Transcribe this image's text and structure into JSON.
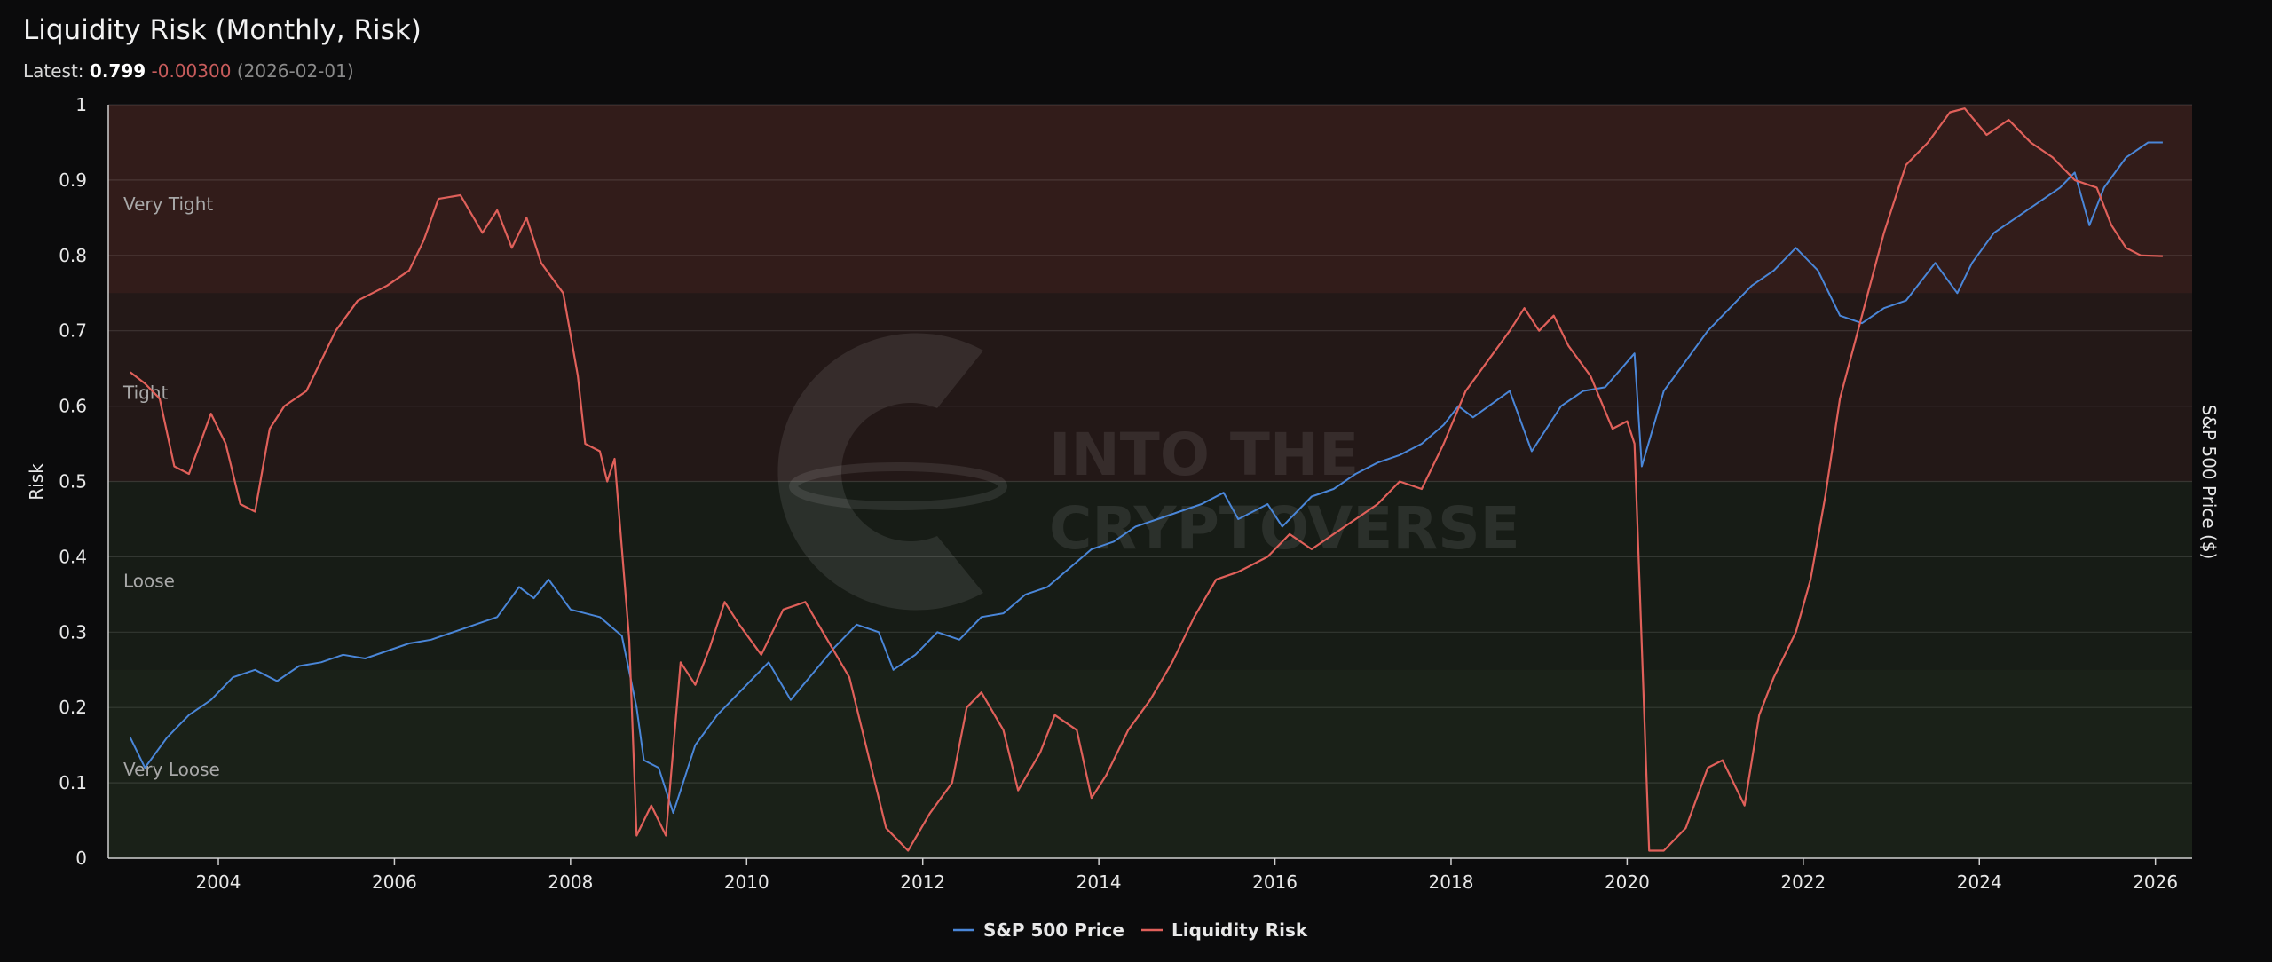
{
  "header": {
    "title": "Liquidity Risk (Monthly, Risk)",
    "latest_label": "Latest:",
    "latest_value": "0.799",
    "latest_change": "-0.00300",
    "latest_date": "(2026-02-01)"
  },
  "watermark": {
    "line1": "INTO THE",
    "line2": "CRYPTOVERSE"
  },
  "colors": {
    "background": "#0b0b0c",
    "sp500": "#4a86d8",
    "liquidity": "#e0605a",
    "zone_tight": "#d44a40",
    "zone_loose": "#3e6a30"
  },
  "chart_data": {
    "type": "line",
    "title": "Liquidity Risk (Monthly, Risk)",
    "xlim": [
      "2002-10-01",
      "2026-06-01"
    ],
    "x_ticks": [
      "2004",
      "2006",
      "2008",
      "2010",
      "2012",
      "2014",
      "2016",
      "2018",
      "2020",
      "2022",
      "2024",
      "2026"
    ],
    "y_left": {
      "label": "Risk",
      "lim": [
        0,
        1
      ],
      "ticks": [
        "0",
        "0.1",
        "0.2",
        "0.3",
        "0.4",
        "0.5",
        "0.6",
        "0.7",
        "0.8",
        "0.9",
        "1"
      ]
    },
    "y_right": {
      "label": "S&P 500 Price ($)"
    },
    "zones": [
      {
        "label": "Very Tight",
        "from": 0.75,
        "to": 1.0
      },
      {
        "label": "Tight",
        "from": 0.5,
        "to": 0.75
      },
      {
        "label": "Loose",
        "from": 0.25,
        "to": 0.5
      },
      {
        "label": "Very Loose",
        "from": 0.0,
        "to": 0.25
      }
    ],
    "grid": true,
    "legend_position": "bottom-center",
    "series": [
      {
        "name": "S&P 500 Price",
        "axis": "right",
        "note": "plotted against left risk scale as shown",
        "points": [
          [
            "2003-01",
            0.16
          ],
          [
            "2003-03",
            0.12
          ],
          [
            "2003-06",
            0.16
          ],
          [
            "2003-09",
            0.19
          ],
          [
            "2003-12",
            0.21
          ],
          [
            "2004-03",
            0.24
          ],
          [
            "2004-06",
            0.25
          ],
          [
            "2004-09",
            0.235
          ],
          [
            "2004-12",
            0.255
          ],
          [
            "2005-03",
            0.26
          ],
          [
            "2005-06",
            0.27
          ],
          [
            "2005-09",
            0.265
          ],
          [
            "2005-12",
            0.275
          ],
          [
            "2006-03",
            0.285
          ],
          [
            "2006-06",
            0.29
          ],
          [
            "2006-09",
            0.3
          ],
          [
            "2006-12",
            0.31
          ],
          [
            "2007-03",
            0.32
          ],
          [
            "2007-06",
            0.36
          ],
          [
            "2007-08",
            0.345
          ],
          [
            "2007-10",
            0.37
          ],
          [
            "2008-01",
            0.33
          ],
          [
            "2008-05",
            0.32
          ],
          [
            "2008-08",
            0.295
          ],
          [
            "2008-10",
            0.2
          ],
          [
            "2008-11",
            0.13
          ],
          [
            "2009-01",
            0.12
          ],
          [
            "2009-03",
            0.06
          ],
          [
            "2009-06",
            0.15
          ],
          [
            "2009-09",
            0.19
          ],
          [
            "2009-12",
            0.22
          ],
          [
            "2010-04",
            0.26
          ],
          [
            "2010-07",
            0.21
          ],
          [
            "2010-10",
            0.245
          ],
          [
            "2011-01",
            0.28
          ],
          [
            "2011-04",
            0.31
          ],
          [
            "2011-07",
            0.3
          ],
          [
            "2011-09",
            0.25
          ],
          [
            "2011-12",
            0.27
          ],
          [
            "2012-03",
            0.3
          ],
          [
            "2012-06",
            0.29
          ],
          [
            "2012-09",
            0.32
          ],
          [
            "2012-12",
            0.325
          ],
          [
            "2013-03",
            0.35
          ],
          [
            "2013-06",
            0.36
          ],
          [
            "2013-09",
            0.385
          ],
          [
            "2013-12",
            0.41
          ],
          [
            "2014-03",
            0.42
          ],
          [
            "2014-06",
            0.44
          ],
          [
            "2014-09",
            0.45
          ],
          [
            "2014-12",
            0.46
          ],
          [
            "2015-03",
            0.47
          ],
          [
            "2015-06",
            0.485
          ],
          [
            "2015-08",
            0.45
          ],
          [
            "2015-12",
            0.47
          ],
          [
            "2016-02",
            0.44
          ],
          [
            "2016-06",
            0.48
          ],
          [
            "2016-09",
            0.49
          ],
          [
            "2016-12",
            0.51
          ],
          [
            "2017-03",
            0.525
          ],
          [
            "2017-06",
            0.535
          ],
          [
            "2017-09",
            0.55
          ],
          [
            "2017-12",
            0.575
          ],
          [
            "2018-02",
            0.6
          ],
          [
            "2018-04",
            0.585
          ],
          [
            "2018-09",
            0.62
          ],
          [
            "2018-12",
            0.54
          ],
          [
            "2019-04",
            0.6
          ],
          [
            "2019-07",
            0.62
          ],
          [
            "2019-10",
            0.625
          ],
          [
            "2020-02",
            0.67
          ],
          [
            "2020-03",
            0.52
          ],
          [
            "2020-06",
            0.62
          ],
          [
            "2020-09",
            0.66
          ],
          [
            "2020-12",
            0.7
          ],
          [
            "2021-03",
            0.73
          ],
          [
            "2021-06",
            0.76
          ],
          [
            "2021-09",
            0.78
          ],
          [
            "2021-12",
            0.81
          ],
          [
            "2022-03",
            0.78
          ],
          [
            "2022-06",
            0.72
          ],
          [
            "2022-09",
            0.71
          ],
          [
            "2022-12",
            0.73
          ],
          [
            "2023-03",
            0.74
          ],
          [
            "2023-07",
            0.79
          ],
          [
            "2023-10",
            0.75
          ],
          [
            "2023-12",
            0.79
          ],
          [
            "2024-03",
            0.83
          ],
          [
            "2024-06",
            0.85
          ],
          [
            "2024-09",
            0.87
          ],
          [
            "2024-12",
            0.89
          ],
          [
            "2025-02",
            0.91
          ],
          [
            "2025-04",
            0.84
          ],
          [
            "2025-06",
            0.89
          ],
          [
            "2025-09",
            0.93
          ],
          [
            "2025-12",
            0.95
          ],
          [
            "2026-02",
            0.95
          ]
        ]
      },
      {
        "name": "Liquidity Risk",
        "axis": "left",
        "points": [
          [
            "2003-01",
            0.645
          ],
          [
            "2003-03",
            0.63
          ],
          [
            "2003-05",
            0.61
          ],
          [
            "2003-07",
            0.52
          ],
          [
            "2003-09",
            0.51
          ],
          [
            "2003-12",
            0.59
          ],
          [
            "2004-02",
            0.55
          ],
          [
            "2004-04",
            0.47
          ],
          [
            "2004-06",
            0.46
          ],
          [
            "2004-08",
            0.57
          ],
          [
            "2004-10",
            0.6
          ],
          [
            "2005-01",
            0.62
          ],
          [
            "2005-05",
            0.7
          ],
          [
            "2005-08",
            0.74
          ],
          [
            "2005-12",
            0.76
          ],
          [
            "2006-03",
            0.78
          ],
          [
            "2006-05",
            0.82
          ],
          [
            "2006-07",
            0.875
          ],
          [
            "2006-10",
            0.88
          ],
          [
            "2007-01",
            0.83
          ],
          [
            "2007-03",
            0.86
          ],
          [
            "2007-05",
            0.81
          ],
          [
            "2007-07",
            0.85
          ],
          [
            "2007-09",
            0.79
          ],
          [
            "2007-12",
            0.75
          ],
          [
            "2008-02",
            0.64
          ],
          [
            "2008-03",
            0.55
          ],
          [
            "2008-05",
            0.54
          ],
          [
            "2008-06",
            0.5
          ],
          [
            "2008-07",
            0.53
          ],
          [
            "2008-09",
            0.29
          ],
          [
            "2008-10",
            0.03
          ],
          [
            "2008-12",
            0.07
          ],
          [
            "2009-02",
            0.03
          ],
          [
            "2009-04",
            0.26
          ],
          [
            "2009-06",
            0.23
          ],
          [
            "2009-08",
            0.28
          ],
          [
            "2009-10",
            0.34
          ],
          [
            "2009-12",
            0.31
          ],
          [
            "2010-03",
            0.27
          ],
          [
            "2010-06",
            0.33
          ],
          [
            "2010-09",
            0.34
          ],
          [
            "2010-12",
            0.29
          ],
          [
            "2011-03",
            0.24
          ],
          [
            "2011-06",
            0.12
          ],
          [
            "2011-08",
            0.04
          ],
          [
            "2011-11",
            0.01
          ],
          [
            "2012-02",
            0.06
          ],
          [
            "2012-05",
            0.1
          ],
          [
            "2012-07",
            0.2
          ],
          [
            "2012-09",
            0.22
          ],
          [
            "2012-12",
            0.17
          ],
          [
            "2013-02",
            0.09
          ],
          [
            "2013-05",
            0.14
          ],
          [
            "2013-07",
            0.19
          ],
          [
            "2013-10",
            0.17
          ],
          [
            "2013-12",
            0.08
          ],
          [
            "2014-02",
            0.11
          ],
          [
            "2014-05",
            0.17
          ],
          [
            "2014-08",
            0.21
          ],
          [
            "2014-11",
            0.26
          ],
          [
            "2015-02",
            0.32
          ],
          [
            "2015-05",
            0.37
          ],
          [
            "2015-08",
            0.38
          ],
          [
            "2015-12",
            0.4
          ],
          [
            "2016-03",
            0.43
          ],
          [
            "2016-06",
            0.41
          ],
          [
            "2016-09",
            0.43
          ],
          [
            "2016-12",
            0.45
          ],
          [
            "2017-03",
            0.47
          ],
          [
            "2017-06",
            0.5
          ],
          [
            "2017-09",
            0.49
          ],
          [
            "2017-12",
            0.55
          ],
          [
            "2018-03",
            0.62
          ],
          [
            "2018-06",
            0.66
          ],
          [
            "2018-09",
            0.7
          ],
          [
            "2018-11",
            0.73
          ],
          [
            "2019-01",
            0.7
          ],
          [
            "2019-03",
            0.72
          ],
          [
            "2019-05",
            0.68
          ],
          [
            "2019-08",
            0.64
          ],
          [
            "2019-11",
            0.57
          ],
          [
            "2020-01",
            0.58
          ],
          [
            "2020-02",
            0.55
          ],
          [
            "2020-04",
            0.01
          ],
          [
            "2020-06",
            0.01
          ],
          [
            "2020-09",
            0.04
          ],
          [
            "2020-12",
            0.12
          ],
          [
            "2021-02",
            0.13
          ],
          [
            "2021-05",
            0.07
          ],
          [
            "2021-07",
            0.19
          ],
          [
            "2021-09",
            0.24
          ],
          [
            "2021-12",
            0.3
          ],
          [
            "2022-02",
            0.37
          ],
          [
            "2022-04",
            0.48
          ],
          [
            "2022-06",
            0.61
          ],
          [
            "2022-09",
            0.72
          ],
          [
            "2022-12",
            0.83
          ],
          [
            "2023-03",
            0.92
          ],
          [
            "2023-06",
            0.95
          ],
          [
            "2023-09",
            0.99
          ],
          [
            "2023-11",
            0.995
          ],
          [
            "2024-02",
            0.96
          ],
          [
            "2024-05",
            0.98
          ],
          [
            "2024-08",
            0.95
          ],
          [
            "2024-11",
            0.93
          ],
          [
            "2025-02",
            0.9
          ],
          [
            "2025-05",
            0.89
          ],
          [
            "2025-07",
            0.84
          ],
          [
            "2025-09",
            0.81
          ],
          [
            "2025-11",
            0.8
          ],
          [
            "2026-02",
            0.799
          ]
        ]
      }
    ]
  }
}
